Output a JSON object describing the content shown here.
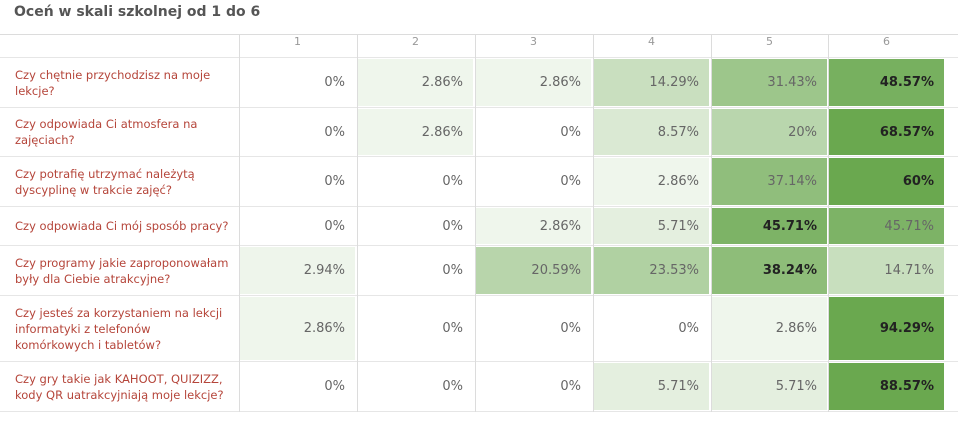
{
  "title": "Oceń w skali szkolnej od 1 do 6",
  "chart_data": {
    "type": "table",
    "title": "Oceń w skali szkolnej od 1 do 6",
    "columns": [
      "1",
      "2",
      "3",
      "4",
      "5",
      "6"
    ],
    "rows": [
      {
        "label": "Czy chętnie przychodzisz na moje lekcje?",
        "values": [
          "0%",
          "2.86%",
          "2.86%",
          "14.29%",
          "31.43%",
          "48.57%"
        ],
        "numbers": [
          0,
          2.86,
          2.86,
          14.29,
          31.43,
          48.57
        ],
        "max_index": 5
      },
      {
        "label": "Czy odpowiada Ci atmosfera na zajęciach?",
        "values": [
          "0%",
          "2.86%",
          "0%",
          "8.57%",
          "20%",
          "68.57%"
        ],
        "numbers": [
          0,
          2.86,
          0,
          8.57,
          20,
          68.57
        ],
        "max_index": 5
      },
      {
        "label": "Czy potrafię utrzymać należytą dyscyplinę w trakcie zajęć?",
        "values": [
          "0%",
          "0%",
          "0%",
          "2.86%",
          "37.14%",
          "60%"
        ],
        "numbers": [
          0,
          0,
          0,
          2.86,
          37.14,
          60
        ],
        "max_index": 5
      },
      {
        "label": "Czy odpowiada Ci mój sposób pracy?",
        "values": [
          "0%",
          "0%",
          "2.86%",
          "5.71%",
          "45.71%",
          "45.71%"
        ],
        "numbers": [
          0,
          0,
          2.86,
          5.71,
          45.71,
          45.71
        ],
        "max_index": 4
      },
      {
        "label": "Czy programy jakie zaproponowałam były dla Ciebie atrakcyjne?",
        "values": [
          "2.94%",
          "0%",
          "20.59%",
          "23.53%",
          "38.24%",
          "14.71%"
        ],
        "numbers": [
          2.94,
          0,
          20.59,
          23.53,
          38.24,
          14.71
        ],
        "max_index": 4
      },
      {
        "label": "Czy jesteś za korzystaniem na lekcji informatyki z telefonów komórkowych i tabletów?",
        "values": [
          "2.86%",
          "0%",
          "0%",
          "0%",
          "2.86%",
          "94.29%"
        ],
        "numbers": [
          2.86,
          0,
          0,
          0,
          2.86,
          94.29
        ],
        "max_index": 5
      },
      {
        "label": "Czy gry takie jak KAHOOT, QUIZIZZ, kody QR uatrakcyjniają moje lekcje?",
        "values": [
          "0%",
          "0%",
          "0%",
          "5.71%",
          "5.71%",
          "88.57%"
        ],
        "numbers": [
          0,
          0,
          0,
          5.71,
          5.71,
          88.57
        ],
        "max_index": 5
      }
    ]
  }
}
